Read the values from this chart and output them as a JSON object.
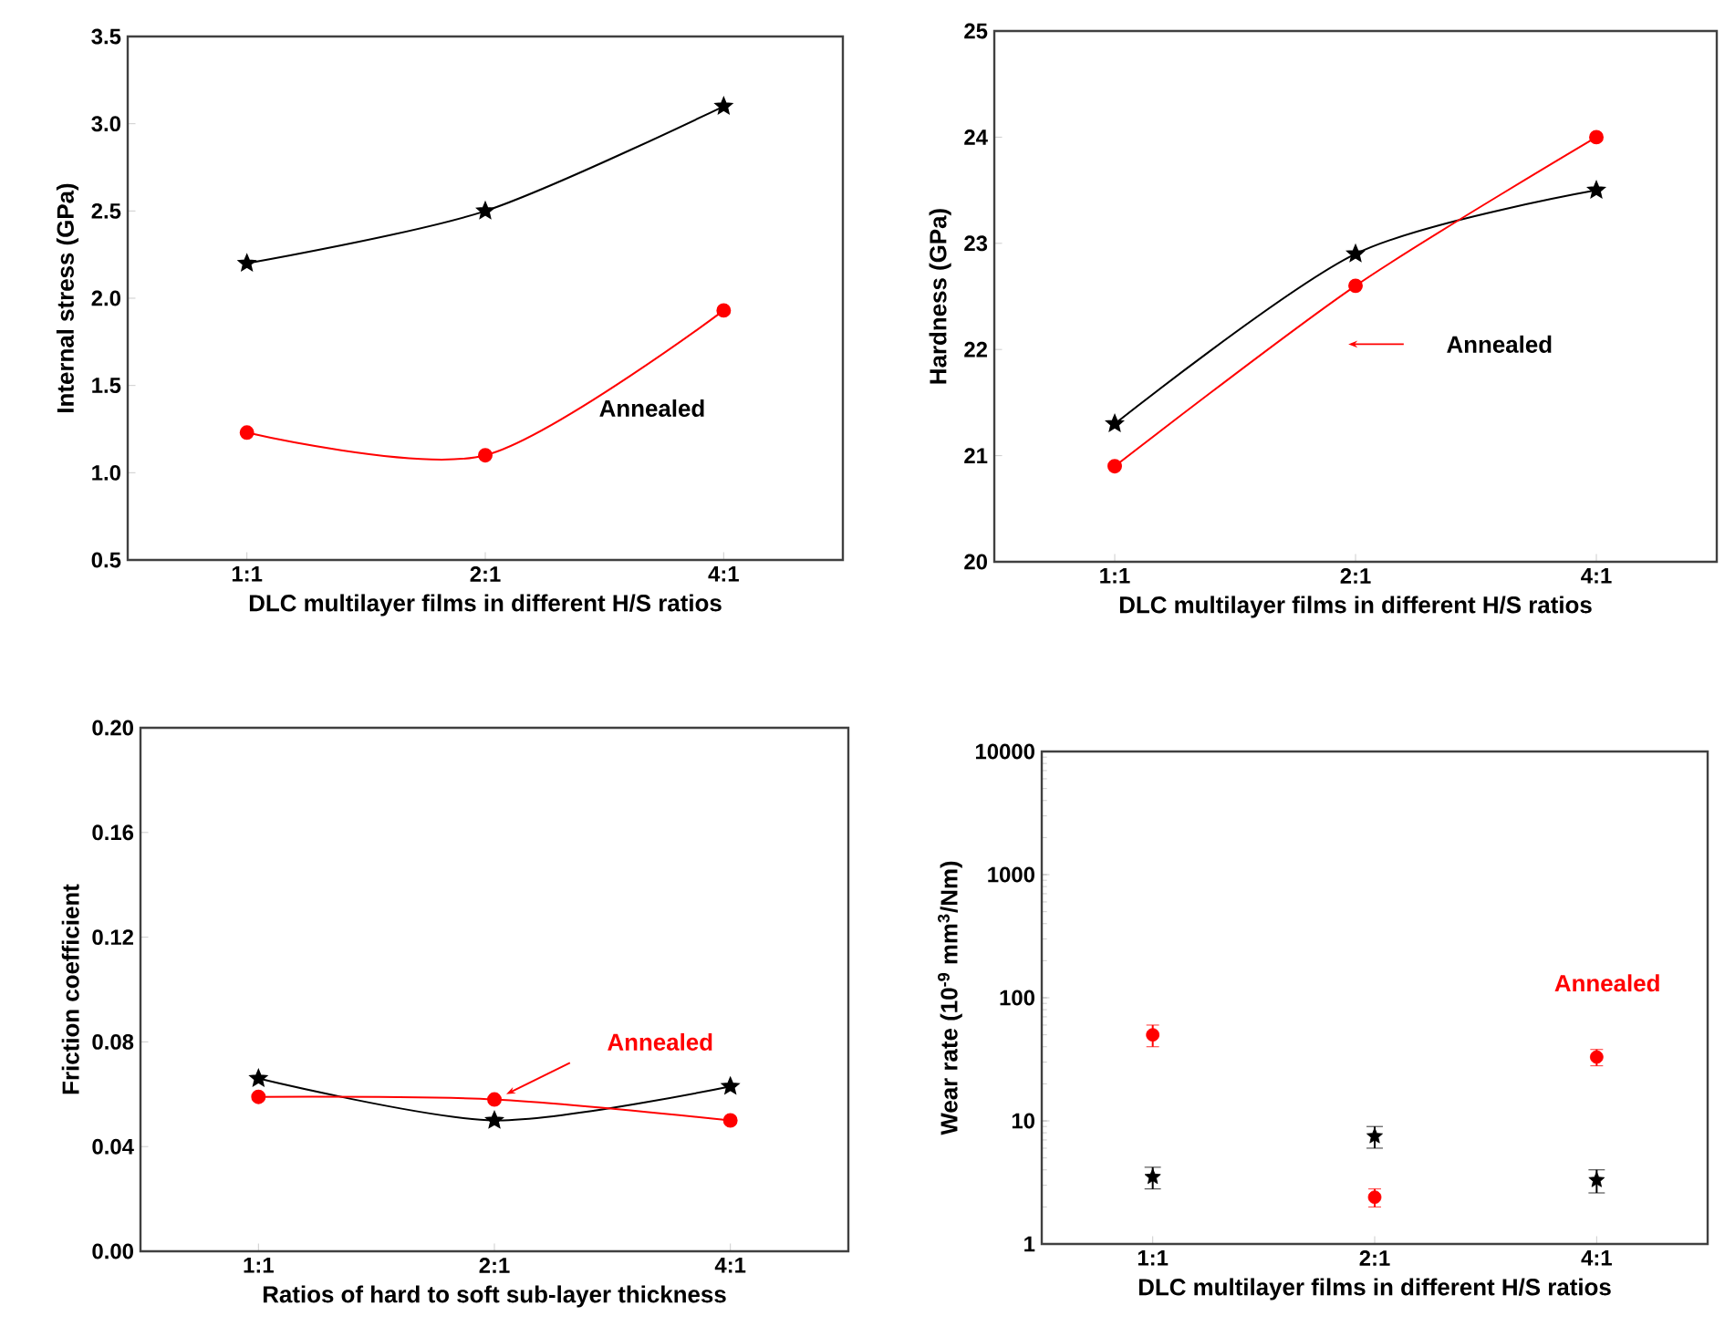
{
  "chart_data": [
    {
      "type": "line",
      "xlabel": "DLC multilayer films in different H/S ratios",
      "ylabel": "Internal stress (GPa)",
      "categories": [
        "1:1",
        "2:1",
        "4:1"
      ],
      "series": [
        {
          "color": "#000000",
          "marker": "star",
          "values": [
            2.2,
            2.5,
            3.1
          ]
        },
        {
          "color": "#ff0000",
          "marker": "circle",
          "values": [
            1.23,
            1.1,
            1.93
          ]
        }
      ],
      "ylim": [
        0.5,
        3.5
      ],
      "yticks": [
        {
          "value": 0.5,
          "label": "0.5"
        },
        {
          "value": 1,
          "label": "1.0"
        },
        {
          "value": 1.5,
          "label": "1.5"
        },
        {
          "value": 2,
          "label": "2.0"
        },
        {
          "value": 2.5,
          "label": "2.5"
        },
        {
          "value": 3,
          "label": "3.0"
        },
        {
          "value": 3.5,
          "label": "3.5"
        }
      ],
      "annotations": [
        "Annealed"
      ]
    },
    {
      "type": "line",
      "xlabel": "DLC multilayer films in different H/S ratios",
      "ylabel": "Hardness (GPa)",
      "categories": [
        "1:1",
        "2:1",
        "4:1"
      ],
      "series": [
        {
          "color": "#000000",
          "marker": "star",
          "values": [
            21.3,
            22.9,
            23.5
          ]
        },
        {
          "color": "#ff0000",
          "marker": "circle",
          "values": [
            20.9,
            22.6,
            24.0
          ]
        }
      ],
      "ylim": [
        20,
        25
      ],
      "yticks": [
        20,
        21,
        22,
        23,
        24,
        25
      ],
      "annotations": [
        "Annealed"
      ]
    },
    {
      "type": "line",
      "xlabel": "Ratios of hard to soft sub-layer thickness",
      "ylabel": "Friction coefficient",
      "categories": [
        "1:1",
        "2:1",
        "4:1"
      ],
      "series": [
        {
          "color": "#000000",
          "marker": "star",
          "values": [
            0.066,
            0.05,
            0.063
          ]
        },
        {
          "color": "#ff0000",
          "marker": "circle",
          "values": [
            0.059,
            0.058,
            0.05
          ]
        }
      ],
      "ylim": [
        0,
        0.2
      ],
      "yticks": [
        {
          "value": 0,
          "label": "0.00"
        },
        {
          "value": 0.04,
          "label": "0.04"
        },
        {
          "value": 0.08,
          "label": "0.08"
        },
        {
          "value": 0.12,
          "label": "0.12"
        },
        {
          "value": 0.16,
          "label": "0.16"
        },
        {
          "value": 0.2,
          "label": "0.20"
        }
      ],
      "annotations": [
        "Annealed"
      ]
    },
    {
      "type": "scatter",
      "log": "y",
      "xlabel": "DLC multilayer films in different H/S ratios",
      "ylabel": "Wear rate (10$^{-9}$ mm$^{3}$/Nm)",
      "categories": [
        "1:1",
        "2:1",
        "4:1"
      ],
      "series": [
        {
          "color": "#000000",
          "marker": "star",
          "values": [
            3.5,
            7.5,
            3.3
          ],
          "errors": [
            0.7,
            1.5,
            0.7
          ]
        },
        {
          "color": "#ff0000",
          "marker": "circle",
          "values": [
            50,
            2.4,
            33
          ],
          "errors": [
            10,
            0.4,
            5
          ]
        }
      ],
      "ylim": [
        1,
        10000
      ],
      "yticks": [
        1,
        10,
        100,
        1000,
        10000
      ],
      "annotations": [
        "Annealed"
      ]
    }
  ]
}
